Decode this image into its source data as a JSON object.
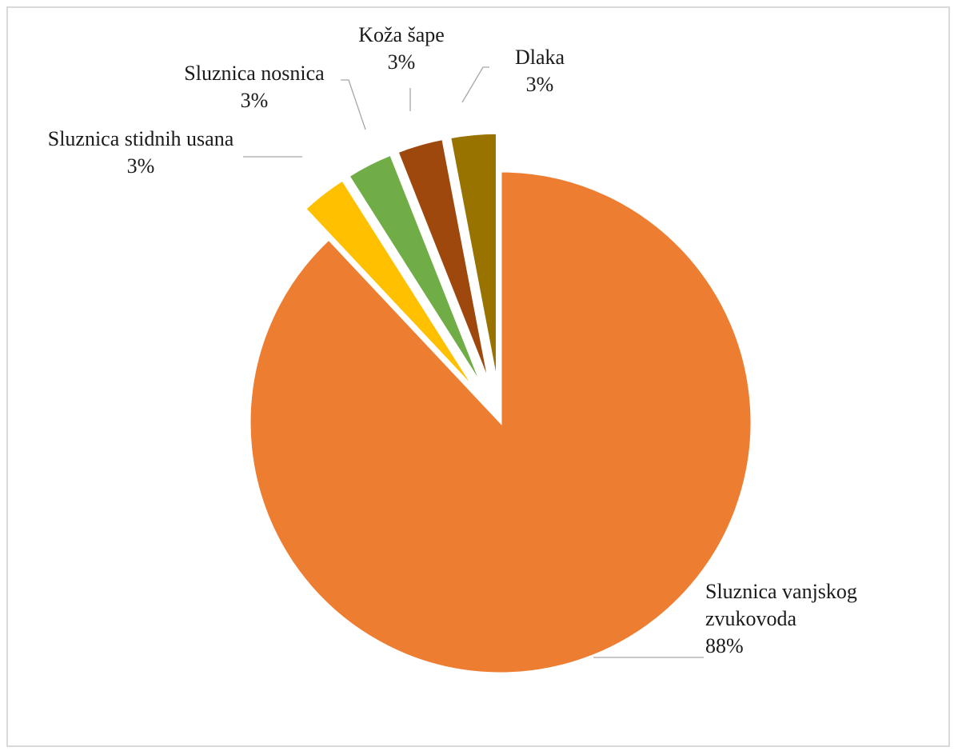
{
  "chart_data": {
    "type": "pie",
    "title": "",
    "slices": [
      {
        "label": "Sluznica vanjskog zvukovoda",
        "label_lines": [
          "Sluznica vanjskog",
          "zvukovoda"
        ],
        "percent_label": "88%",
        "value": 88,
        "color": "#ED7D31"
      },
      {
        "label": "Sluznica stidnih usana",
        "label_lines": [
          "Sluznica stidnih usana"
        ],
        "percent_label": "3%",
        "value": 3,
        "color": "#FFC000"
      },
      {
        "label": "Sluznica nosnica",
        "label_lines": [
          "Sluznica nosnica"
        ],
        "percent_label": "3%",
        "value": 3,
        "color": "#70AD47"
      },
      {
        "label": "Koža šape",
        "label_lines": [
          "Koža šape"
        ],
        "percent_label": "3%",
        "value": 3,
        "color": "#9E480E"
      },
      {
        "label": "Dlaka",
        "label_lines": [
          "Dlaka"
        ],
        "percent_label": "3%",
        "value": 3,
        "color": "#997300"
      }
    ],
    "exploded": true,
    "legend": "none"
  }
}
